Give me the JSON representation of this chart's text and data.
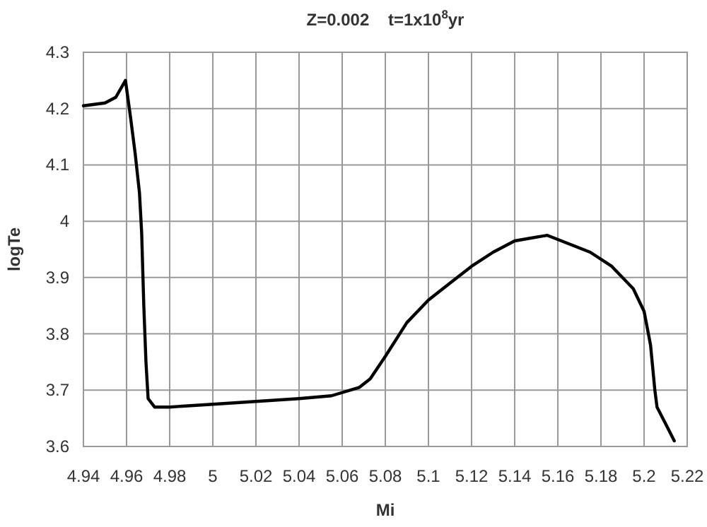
{
  "chart_data": {
    "type": "line",
    "title": "Z=0.002    t=1x10$^{8}$yr",
    "xlabel": "Mi",
    "ylabel": "logTe",
    "xlim": [
      4.94,
      5.22
    ],
    "xticks": [
      4.94,
      4.96,
      4.98,
      {
        "value": 5,
        "label": "5"
      },
      5.02,
      5.04,
      5.06,
      5.08,
      {
        "value": 5.1,
        "label": "5.1"
      },
      5.12,
      5.14,
      5.16,
      5.18,
      {
        "value": 5.2,
        "label": "5.2"
      },
      5.22
    ],
    "ylim": [
      3.6,
      4.3
    ],
    "yticks": [
      3.6,
      3.7,
      3.8,
      3.9,
      {
        "value": 4,
        "label": "4"
      },
      4.1,
      4.2,
      4.3
    ],
    "grid": true,
    "marker": "none",
    "line_style": "solid",
    "series": [
      {
        "color": "#000000",
        "x": [
          4.94,
          4.95,
          4.955,
          4.9595,
          4.962,
          4.964,
          4.966,
          4.967,
          4.968,
          4.969,
          4.97,
          4.973,
          4.98,
          5.0,
          5.02,
          5.04,
          5.055,
          5.068,
          5.073,
          5.08,
          5.09,
          5.1,
          5.11,
          5.12,
          5.13,
          5.14,
          5.155,
          5.165,
          5.175,
          5.185,
          5.195,
          5.2,
          5.203,
          5.205,
          5.206,
          5.21,
          5.214
        ],
        "values": [
          4.205,
          4.21,
          4.22,
          4.25,
          4.18,
          4.12,
          4.05,
          3.98,
          3.85,
          3.75,
          3.685,
          3.67,
          3.67,
          3.675,
          3.68,
          3.685,
          3.69,
          3.705,
          3.72,
          3.76,
          3.82,
          3.86,
          3.89,
          3.92,
          3.945,
          3.965,
          3.975,
          3.96,
          3.945,
          3.92,
          3.88,
          3.84,
          3.78,
          3.7,
          3.67,
          3.64,
          3.61
        ]
      }
    ]
  }
}
